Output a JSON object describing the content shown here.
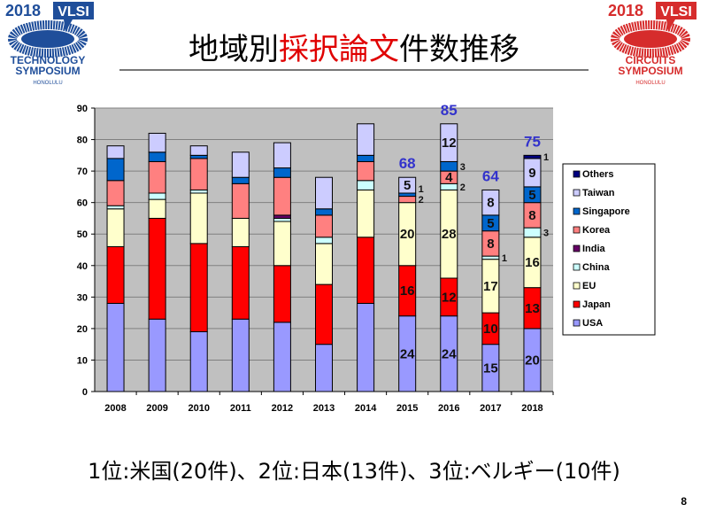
{
  "logos": {
    "left": {
      "year": "2018",
      "brand": "VLSI",
      "line1": "TECHNOLOGY",
      "line2": "SYMPOSIUM",
      "place": "HONOLULU",
      "color": "#1f4e9a"
    },
    "right": {
      "year": "2018",
      "brand": "VLSI",
      "line1": "CIRCUITS",
      "line2": "SYMPOSIUM",
      "place": "HONOLULU",
      "color": "#d62c2c"
    }
  },
  "title": {
    "part1": "地域別",
    "highlight": "採択論文",
    "part2": "件数推移"
  },
  "summary": "1位:米国(20件)、2位:日本(13件)、3位:ベルギー(10件)",
  "page_number": "8",
  "chart_data": {
    "type": "bar",
    "stacked": true,
    "categories": [
      "2008",
      "2009",
      "2010",
      "2011",
      "2012",
      "2013",
      "2014",
      "2015",
      "2016",
      "2017",
      "2018"
    ],
    "ylim": [
      0,
      90
    ],
    "yticks": [
      0,
      10,
      20,
      30,
      40,
      50,
      60,
      70,
      80,
      90
    ],
    "grid": true,
    "legend_placement": "right",
    "background": "#c0c0c0",
    "series": [
      {
        "name": "USA",
        "color": "#9999ff",
        "values": [
          28,
          23,
          19,
          23,
          22,
          15,
          28,
          24,
          24,
          15,
          20
        ]
      },
      {
        "name": "Japan",
        "color": "#ff0000",
        "values": [
          18,
          32,
          28,
          23,
          18,
          19,
          21,
          16,
          12,
          10,
          13
        ]
      },
      {
        "name": "EU",
        "color": "#ffffcc",
        "values": [
          12,
          6,
          16,
          9,
          14,
          13,
          15,
          20,
          28,
          17,
          16
        ]
      },
      {
        "name": "China",
        "color": "#ccffff",
        "values": [
          1,
          2,
          1,
          0,
          1,
          2,
          3,
          0,
          2,
          1,
          3
        ]
      },
      {
        "name": "India",
        "color": "#660066",
        "values": [
          0,
          0,
          0,
          0,
          1,
          0,
          0,
          0,
          0,
          0,
          0
        ]
      },
      {
        "name": "Korea",
        "color": "#ff8080",
        "values": [
          8,
          10,
          10,
          11,
          12,
          7,
          6,
          2,
          4,
          8,
          8
        ]
      },
      {
        "name": "Singapore",
        "color": "#0066cc",
        "values": [
          7,
          3,
          1,
          2,
          3,
          2,
          2,
          1,
          3,
          5,
          5
        ]
      },
      {
        "name": "Taiwan",
        "color": "#ccccff",
        "values": [
          4,
          6,
          3,
          8,
          8,
          10,
          10,
          5,
          12,
          8,
          9
        ]
      },
      {
        "name": "Others",
        "color": "#000080",
        "values": [
          0,
          0,
          0,
          0,
          0,
          0,
          0,
          0,
          0,
          0,
          1
        ]
      }
    ],
    "data_labels_years": [
      "2015",
      "2016",
      "2017",
      "2018"
    ],
    "totals": {
      "2015": "68",
      "2016": "85",
      "2017": "64",
      "2018": "75"
    },
    "total_label_color": "#3333cc"
  }
}
